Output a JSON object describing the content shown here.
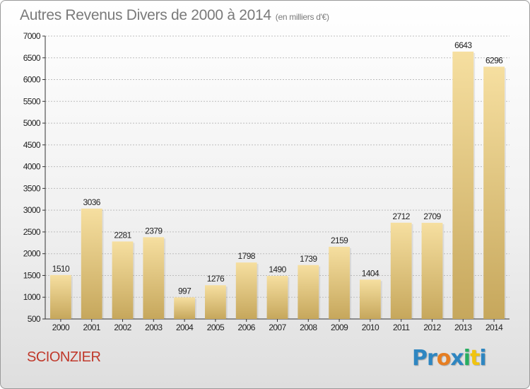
{
  "header": {
    "title": "Autres Revenus Divers de 2000 à 2014",
    "unit": "(en milliers d'€)"
  },
  "footer": {
    "city": "SCIONZIER",
    "logo_text": [
      "P",
      "r",
      "o",
      "x",
      "i",
      "t",
      "i"
    ],
    "logo_colors": [
      "#2e86c1",
      "#2e86c1",
      "#e67e22",
      "#2e86c1",
      "#27ae60",
      "#f1c40f",
      "#2e86c1"
    ]
  },
  "colors": {
    "bar_light": "#f6dfa0",
    "bar_dark": "#c6a75c",
    "grid": "#bdbdbd",
    "axis": "#333333"
  },
  "chart_data": {
    "type": "bar",
    "title": "Autres Revenus Divers de 2000 à 2014",
    "subtitle": "(en milliers d'€)",
    "xlabel": "",
    "ylabel": "",
    "categories": [
      "2000",
      "2001",
      "2002",
      "2003",
      "2004",
      "2005",
      "2006",
      "2007",
      "2008",
      "2009",
      "2010",
      "2011",
      "2012",
      "2013",
      "2014"
    ],
    "values": [
      1510,
      3036,
      2281,
      2379,
      997,
      1276,
      1798,
      1490,
      1739,
      2159,
      1404,
      2712,
      2709,
      6643,
      6296
    ],
    "ylim": [
      500,
      7000
    ],
    "yticks": [
      500,
      1000,
      1500,
      2000,
      2500,
      3000,
      3500,
      4000,
      4500,
      5000,
      5500,
      6000,
      6500,
      7000
    ],
    "grid": true,
    "legend": "none"
  }
}
